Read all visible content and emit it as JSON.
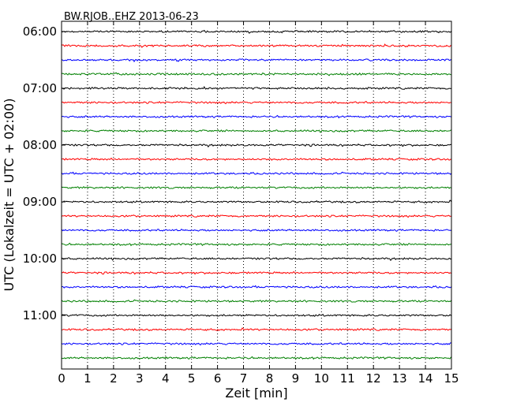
{
  "chart_data": {
    "type": "line",
    "title": "BW.RJOB..EHZ 2013-06-23",
    "xlabel": "Zeit  [min]",
    "ylabel": "UTC (Lokalzeit = UTC + 02:00)",
    "xlim": [
      0,
      15
    ],
    "x_ticks": [
      "0",
      "1",
      "2",
      "3",
      "4",
      "5",
      "6",
      "7",
      "8",
      "9",
      "10",
      "11",
      "12",
      "13",
      "14",
      "15"
    ],
    "y_tick_labels": [
      "06:00",
      "07:00",
      "08:00",
      "09:00",
      "10:00",
      "11:00"
    ],
    "rows_per_hour": 4,
    "row_minutes": 15,
    "start_time": "06:00",
    "row_count": 24,
    "grid": "vertical dotted lines at each minute",
    "colors": [
      "#000000",
      "#ff0000",
      "#0000ff",
      "#008000"
    ]
  }
}
